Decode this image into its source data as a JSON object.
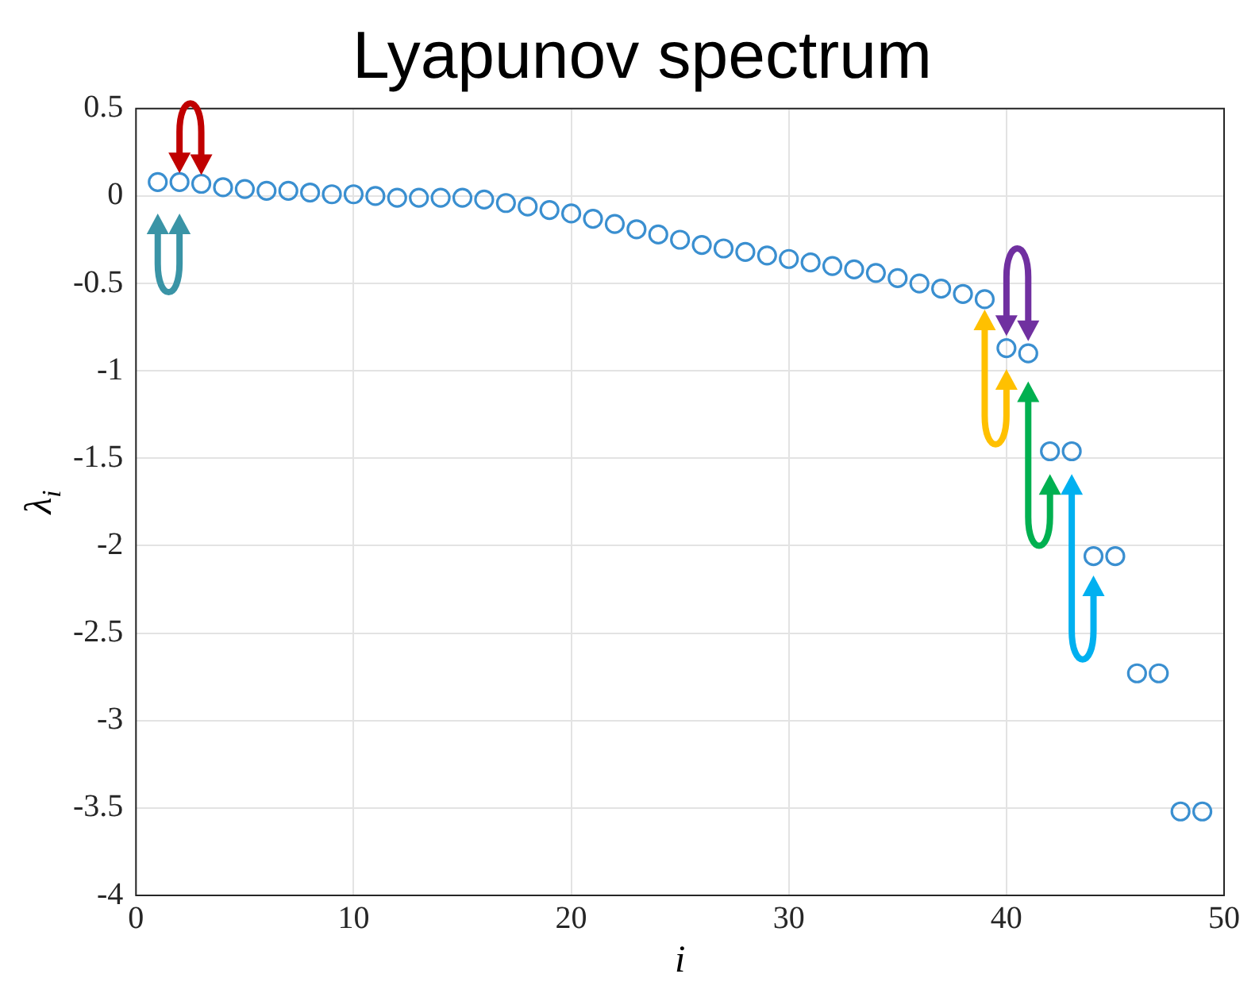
{
  "chart_data": {
    "type": "scatter",
    "title": "Lyapunov spectrum",
    "xlabel": "i",
    "ylabel": "λ$_{i}$",
    "x": [
      1,
      2,
      3,
      4,
      5,
      6,
      7,
      8,
      9,
      10,
      11,
      12,
      13,
      14,
      15,
      16,
      17,
      18,
      19,
      20,
      21,
      22,
      23,
      24,
      25,
      26,
      27,
      28,
      29,
      30,
      31,
      32,
      33,
      34,
      35,
      36,
      37,
      38,
      39,
      40,
      41,
      42,
      43,
      44,
      45,
      46,
      47,
      48,
      49
    ],
    "series": [
      {
        "color": "#3a8fd0",
        "values": [
          0.08,
          0.08,
          0.07,
          0.05,
          0.04,
          0.03,
          0.03,
          0.02,
          0.01,
          0.01,
          0,
          -0.01,
          -0.01,
          -0.01,
          -0.01,
          -0.02,
          -0.04,
          -0.06,
          -0.08,
          -0.1,
          -0.13,
          -0.16,
          -0.19,
          -0.22,
          -0.25,
          -0.28,
          -0.3,
          -0.32,
          -0.34,
          -0.36,
          -0.38,
          -0.4,
          -0.42,
          -0.44,
          -0.47,
          -0.5,
          -0.53,
          -0.56,
          -0.59,
          -0.87,
          -0.9,
          -1.46,
          -1.46,
          -2.06,
          -2.06,
          -2.73,
          -2.73,
          -3.52,
          -3.52
        ]
      }
    ],
    "xlim": [
      0,
      50
    ],
    "xticks": [
      0,
      10,
      20,
      30,
      40,
      50
    ],
    "ylim": [
      -4,
      0.5
    ],
    "yticks": [
      {
        "value": -4,
        "label": "-4"
      },
      {
        "value": -3.5,
        "label": "-3.5"
      },
      {
        "value": -3,
        "label": "-3"
      },
      {
        "value": -2.5,
        "label": "-2.5"
      },
      {
        "value": -2,
        "label": "-2"
      },
      {
        "value": -1.5,
        "label": "-1.5"
      },
      {
        "value": -1,
        "label": "-1"
      },
      {
        "value": -0.5,
        "label": "-0.5"
      },
      0,
      0.5
    ],
    "grid": true,
    "legend": false,
    "marker": "circle"
  }
}
